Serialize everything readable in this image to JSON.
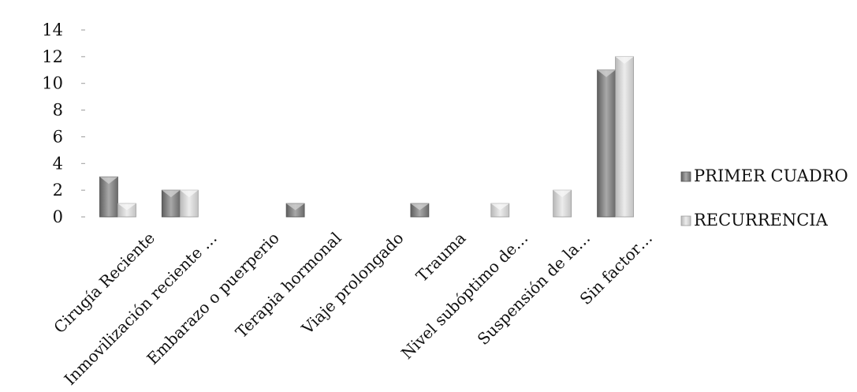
{
  "chart_data": {
    "type": "bar",
    "categories": [
      "Cirugía Reciente",
      "Inmovilización reciente …",
      "Embarazo o puerperio",
      "Terapia hormonal",
      "Viaje prolongado",
      "Trauma",
      "Nivel subóptimo de…",
      "Suspensión de la…",
      "Sin factor…"
    ],
    "series": [
      {
        "name": "PRIMER CUADRO",
        "values": [
          3,
          2,
          0,
          1,
          0,
          1,
          0,
          0,
          11
        ]
      },
      {
        "name": "RECURRENCIA",
        "values": [
          1,
          2,
          0,
          0,
          0,
          0,
          1,
          2,
          12
        ]
      }
    ],
    "ylim": [
      0,
      14
    ],
    "yticks": [
      0,
      2,
      4,
      6,
      8,
      10,
      12,
      14
    ],
    "grid": false,
    "legend_position": "right",
    "series_colors": [
      "#8a8a8a",
      "#d4d4d4"
    ]
  }
}
